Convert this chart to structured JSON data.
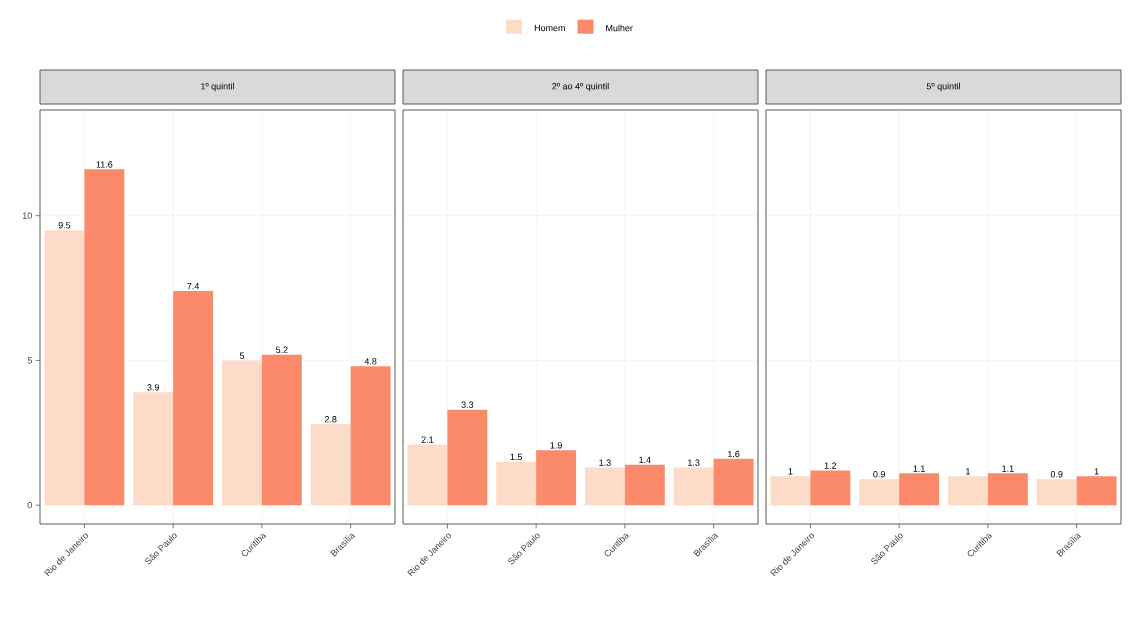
{
  "chart_data": [
    {
      "type": "bar",
      "title": "1º quintil",
      "categories": [
        "Rio de Janeiro",
        "São Paulo",
        "Curitiba",
        "Brasília"
      ],
      "series": [
        {
          "name": "Homem",
          "color": "#fcdcc9",
          "values": [
            9.5,
            3.9,
            5,
            2.8
          ]
        },
        {
          "name": "Mulher",
          "color": "#fb8a6a",
          "values": [
            11.6,
            7.4,
            5.2,
            4.8
          ]
        }
      ],
      "ylim": [
        -0.65,
        13.65
      ],
      "yticks": [
        0,
        5,
        10
      ],
      "grid": true,
      "data_labels": true,
      "legend": "top"
    },
    {
      "type": "bar",
      "title": "2º ao 4º quintil",
      "categories": [
        "Rio de Janeiro",
        "São Paulo",
        "Curitiba",
        "Brasília"
      ],
      "series": [
        {
          "color": "#fcdcc9",
          "values": [
            2.1,
            1.5,
            1.3,
            1.3
          ]
        },
        {
          "color": "#fb8a6a",
          "values": [
            3.3,
            1.9,
            1.4,
            1.6
          ]
        }
      ],
      "ylim": [
        -0.65,
        13.65
      ],
      "yticks": [
        0,
        5,
        10
      ],
      "grid": true,
      "data_labels": true,
      "tick_labels": "x"
    },
    {
      "type": "bar",
      "title": "5º quintil",
      "categories": [
        "Rio de Janeiro",
        "São Paulo",
        "Curitiba",
        "Brasília"
      ],
      "series": [
        {
          "color": "#fcdcc9",
          "values": [
            1,
            0.9,
            1,
            0.9
          ]
        },
        {
          "color": "#fb8a6a",
          "values": [
            1.2,
            1.1,
            1.1,
            1
          ]
        }
      ],
      "ylim": [
        -0.65,
        13.65
      ],
      "yticks": [
        0,
        5,
        10
      ],
      "grid": true,
      "data_labels": true,
      "tick_labels": "x"
    }
  ]
}
